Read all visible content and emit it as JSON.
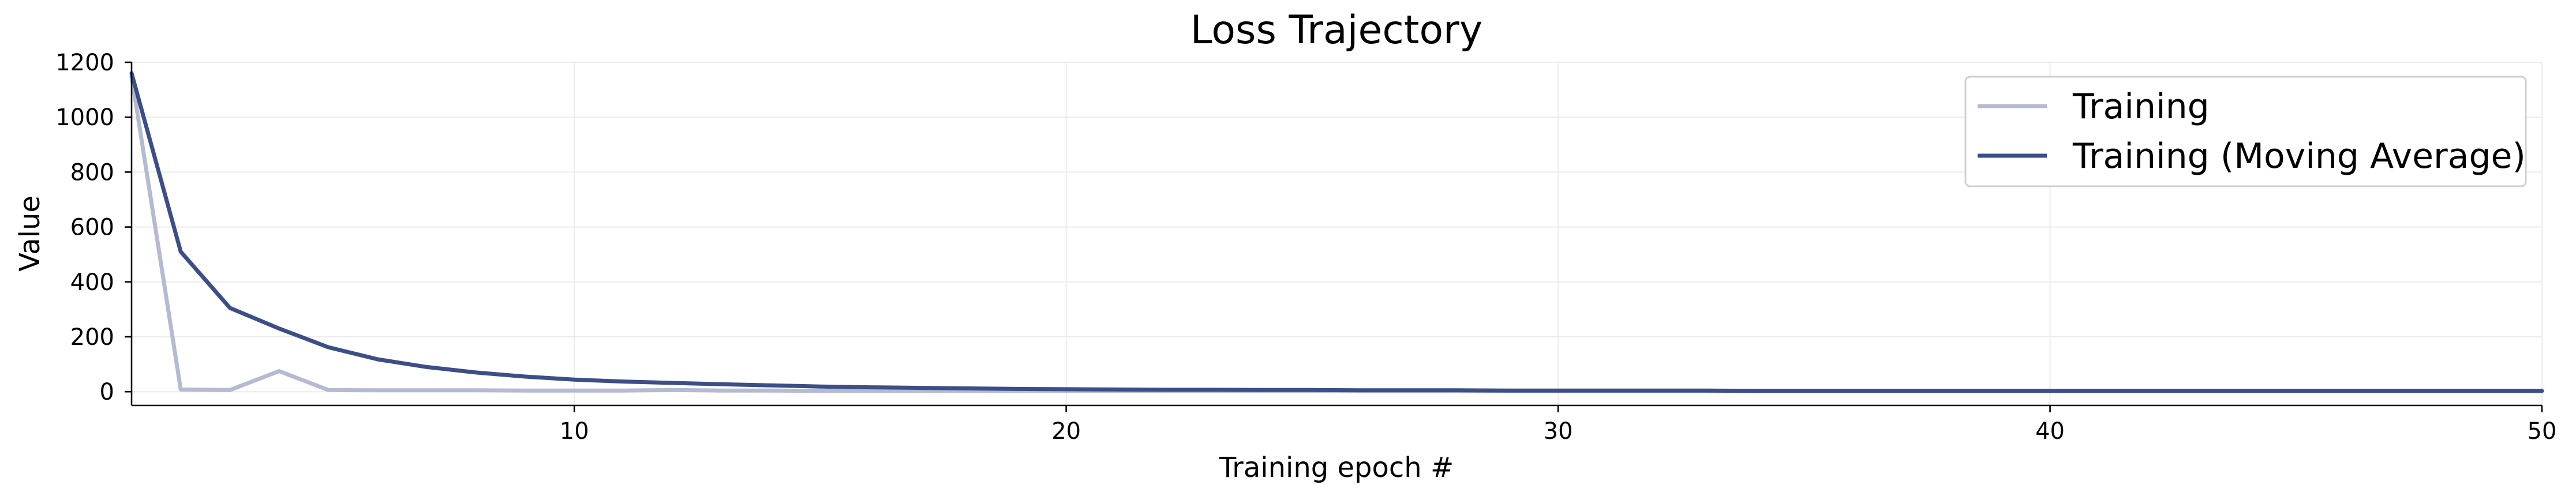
{
  "chart_data": {
    "type": "line",
    "title": "Loss Trajectory",
    "xlabel": "Training epoch #",
    "ylabel": "Value",
    "xlim": [
      1,
      50
    ],
    "ylim": [
      -50,
      1200
    ],
    "xticks": [
      10,
      20,
      30,
      40,
      50
    ],
    "yticks": [
      0,
      200,
      400,
      600,
      800,
      1000,
      1200
    ],
    "grid": true,
    "legend_position": "top-right",
    "x": [
      1,
      2,
      3,
      4,
      5,
      6,
      7,
      8,
      9,
      10,
      11,
      12,
      13,
      14,
      15,
      16,
      17,
      18,
      19,
      20,
      21,
      22,
      23,
      24,
      25,
      26,
      27,
      28,
      29,
      30,
      31,
      32,
      33,
      34,
      35,
      36,
      37,
      38,
      39,
      40,
      41,
      42,
      43,
      44,
      45,
      46,
      47,
      48,
      49,
      50
    ],
    "series": [
      {
        "name": "Training",
        "color": "#b4bad2",
        "values": [
          1150,
          8,
          6,
          75,
          6,
          5,
          5,
          5,
          4,
          4,
          4,
          6,
          4,
          4,
          3,
          3,
          3,
          3,
          3,
          3,
          3,
          3,
          3,
          3,
          3,
          2,
          2,
          2,
          2,
          2,
          2,
          2,
          2,
          2,
          2,
          2,
          2,
          2,
          2,
          2,
          2,
          2,
          2,
          2,
          2,
          2,
          2,
          2,
          2,
          2
        ]
      },
      {
        "name": "Training (Moving Average)",
        "color": "#3c4e87",
        "values": [
          1160,
          510,
          305,
          230,
          162,
          118,
          90,
          70,
          55,
          44,
          37,
          32,
          27,
          23,
          19,
          16,
          14,
          12,
          10,
          9,
          8,
          7,
          7,
          6,
          6,
          5,
          5,
          5,
          4,
          4,
          4,
          4,
          4,
          3,
          3,
          3,
          3,
          3,
          3,
          3,
          3,
          3,
          3,
          3,
          3,
          3,
          3,
          3,
          3,
          3
        ]
      }
    ]
  }
}
